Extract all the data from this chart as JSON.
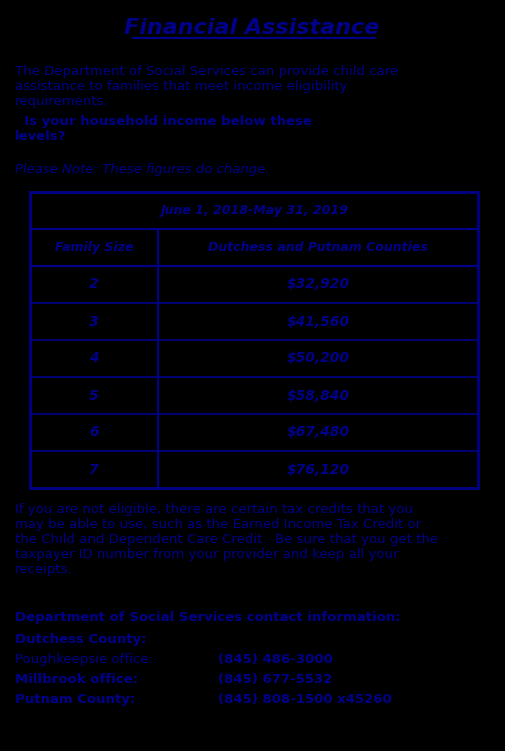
{
  "title": "Financial Assistance",
  "text_color": "#00008B",
  "table_header_date": "June 1, 2018-May 31, 2019",
  "table_col1_header": "Family Size",
  "table_col2_header": "Dutchess and Putnam Counties",
  "table_data": [
    [
      "2",
      "$32,920"
    ],
    [
      "3",
      "$41,560"
    ],
    [
      "4",
      "$50,200"
    ],
    [
      "5",
      "$58,840"
    ],
    [
      "6",
      "$67,480"
    ],
    [
      "7",
      "$76,120"
    ]
  ],
  "intro_normal": "The Department of Social Services can provide child care\nassistance to families that meet income eligibility\nrequirements.",
  "intro_bold": "  Is your household income below these\nlevels?",
  "note_text": "Please Note: These figures do change.",
  "footer_text": "If you are not eligible, there are certain tax credits that you\nmay be able to use, such as the Earned Income Tax Credit or\nthe Child and Dependent Care Credit.  Be sure that you get the\ntaxpayer ID number from your provider and keep all your\nreceipts.",
  "dept_label": "Department of Social Services contact information:",
  "county1_bold": "Dutchess County:",
  "office1": "Poughkeepsie office:",
  "phone1": "(845) 486-3000",
  "office2": "Millbrook office:",
  "phone2": "(845) 677-5532",
  "county2_bold": "Putnam County:",
  "phone3": "(845) 808-1500 x45260"
}
